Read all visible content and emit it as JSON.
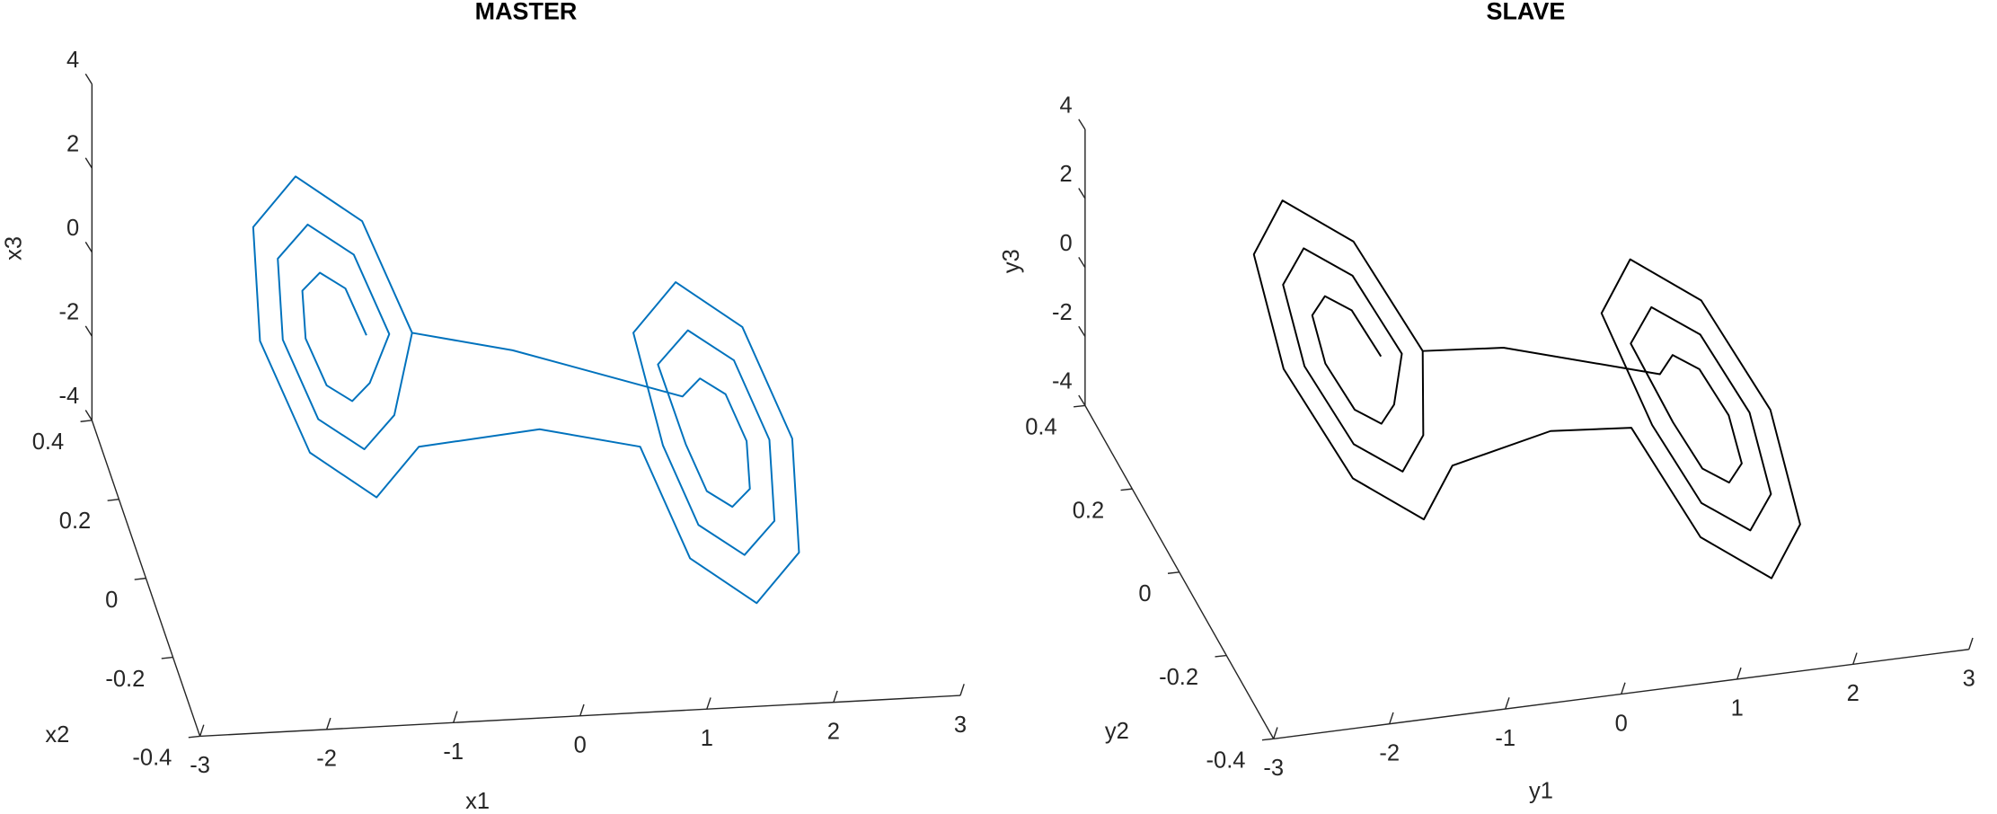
{
  "chart_data": [
    {
      "type": "line3d",
      "title": "MASTER",
      "xlabel": "x1",
      "ylabel": "x2",
      "zlabel": "x3",
      "xlim": [
        -3,
        3
      ],
      "ylim": [
        -0.4,
        0.4
      ],
      "zlim": [
        -4,
        4
      ],
      "xticks": [
        -3,
        -2,
        -1,
        0,
        1,
        2,
        3
      ],
      "yticks": [
        -0.4,
        -0.2,
        0,
        0.2,
        0.4
      ],
      "zticks": [
        -4,
        -2,
        0,
        2,
        4
      ],
      "series": [
        {
          "color": "#0072bd",
          "x": [
            -1.26,
            -1.33,
            -1.5,
            -1.67,
            -1.74,
            -1.67,
            -1.5,
            -1.33,
            -1.08,
            -1.2,
            -1.5,
            -1.8,
            -1.92,
            -1.8,
            -1.5,
            -1.2,
            -0.9,
            -1.07,
            -1.5,
            -1.93,
            -2.1,
            -1.93,
            -1.5,
            -1.07,
            0,
            0.9,
            1.07,
            1.5,
            1.93,
            2.1,
            1.93,
            1.5,
            1.07,
            1.08,
            1.2,
            1.5,
            1.8,
            1.92,
            1.8,
            1.5,
            1.2,
            1.26,
            1.33,
            1.5,
            1.67,
            1.74,
            1.67,
            1.5,
            1.33,
            0,
            -0.9
          ],
          "y": [
            0,
            0.09,
            0.12,
            0.09,
            0,
            -0.09,
            -0.12,
            -0.09,
            0,
            0.15,
            0.21,
            0.15,
            0,
            -0.15,
            -0.21,
            -0.15,
            0,
            0.21,
            0.3,
            0.21,
            0,
            -0.21,
            -0.3,
            -0.21,
            -0.1,
            0,
            -0.21,
            -0.3,
            -0.21,
            0,
            0.21,
            0.3,
            0.21,
            0,
            -0.15,
            -0.21,
            -0.15,
            0,
            0.15,
            0.21,
            0.15,
            0,
            -0.09,
            -0.12,
            -0.09,
            0,
            0.09,
            0.12,
            0.09,
            0.1,
            0
          ],
          "z": [
            1.5,
            1.78,
            1.9,
            1.78,
            1.5,
            1.22,
            1.1,
            1.22,
            1.5,
            2.0,
            2.2,
            2.0,
            1.5,
            1.0,
            0.8,
            1.0,
            1.5,
            2.21,
            2.5,
            2.21,
            1.5,
            0.79,
            0.5,
            0.79,
            0,
            -1.5,
            -2.21,
            -2.5,
            -2.21,
            -1.5,
            -0.79,
            -0.5,
            -0.79,
            -1.5,
            -2.0,
            -2.2,
            -2.0,
            -1.5,
            -1.0,
            -0.8,
            -1.0,
            -1.5,
            -1.78,
            -1.9,
            -1.78,
            -1.5,
            -1.22,
            -1.1,
            -1.22,
            0,
            1.5
          ]
        }
      ]
    },
    {
      "type": "line3d",
      "title": "SLAVE",
      "xlabel": "y1",
      "ylabel": "y2",
      "zlabel": "y3",
      "xlim": [
        -3,
        3
      ],
      "ylim": [
        -0.4,
        0.4
      ],
      "zlim": [
        -4,
        4
      ],
      "xticks": [
        -3,
        -2,
        -1,
        0,
        1,
        2,
        3
      ],
      "yticks": [
        -0.4,
        -0.2,
        0,
        0.2,
        0.4
      ],
      "zticks": [
        -4,
        -2,
        0,
        2,
        4
      ],
      "series": [
        {
          "color": "#000000",
          "x": [
            -1.26,
            -1.33,
            -1.5,
            -1.67,
            -1.74,
            -1.67,
            -1.5,
            -1.33,
            -1.08,
            -1.2,
            -1.5,
            -1.8,
            -1.92,
            -1.8,
            -1.5,
            -1.2,
            -0.9,
            -1.07,
            -1.5,
            -1.93,
            -2.1,
            -1.93,
            -1.5,
            -1.07,
            0,
            0.9,
            1.07,
            1.5,
            1.93,
            2.1,
            1.93,
            1.5,
            1.07,
            1.08,
            1.2,
            1.5,
            1.8,
            1.92,
            1.8,
            1.5,
            1.2,
            1.26,
            1.33,
            1.5,
            1.67,
            1.74,
            1.67,
            1.5,
            1.33,
            0,
            -0.9
          ],
          "y": [
            0,
            0.09,
            0.12,
            0.09,
            0,
            -0.09,
            -0.12,
            -0.09,
            0,
            0.15,
            0.21,
            0.15,
            0,
            -0.15,
            -0.21,
            -0.15,
            0,
            0.21,
            0.3,
            0.21,
            0,
            -0.21,
            -0.3,
            -0.21,
            -0.1,
            0,
            -0.21,
            -0.3,
            -0.21,
            0,
            0.21,
            0.3,
            0.21,
            0,
            -0.15,
            -0.21,
            -0.15,
            0,
            0.15,
            0.21,
            0.15,
            0,
            -0.09,
            -0.12,
            -0.09,
            0,
            0.09,
            0.12,
            0.09,
            0.1,
            0
          ],
          "z": [
            1.5,
            1.78,
            1.9,
            1.78,
            1.5,
            1.22,
            1.1,
            1.22,
            1.5,
            2.0,
            2.2,
            2.0,
            1.5,
            1.0,
            0.8,
            1.0,
            1.5,
            2.21,
            2.5,
            2.21,
            1.5,
            0.79,
            0.5,
            0.79,
            0,
            -1.5,
            -2.21,
            -2.5,
            -2.21,
            -1.5,
            -0.79,
            -0.5,
            -0.79,
            -1.5,
            -2.0,
            -2.2,
            -2.0,
            -1.5,
            -1.0,
            -0.8,
            -1.0,
            -1.5,
            -1.78,
            -1.9,
            -1.78,
            -1.5,
            -1.22,
            -1.1,
            -1.22,
            0,
            1.5
          ]
        }
      ]
    }
  ]
}
